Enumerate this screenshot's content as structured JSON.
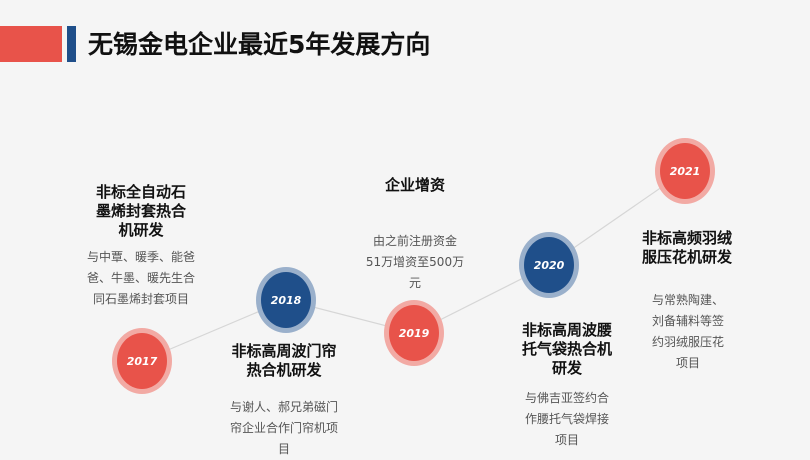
{
  "page": {
    "title": "无锡金电企业最近5年发展方向"
  },
  "colors": {
    "accent_red": "#e8534a",
    "accent_blue": "#1f4f8a",
    "node_red": "#e8534a",
    "node_red_ring": "#f2aaa4",
    "node_blue": "#1f4f8a",
    "node_blue_ring": "#9ab0cb"
  },
  "milestones": [
    {
      "year": "2017",
      "color": "red",
      "title_lines": [
        "非标全自动石",
        "墨烯封套热合",
        "机研发"
      ],
      "desc_lines": [
        "与中覃、暖季、能爸",
        "爸、牛墨、暖先生合",
        "同石墨烯封套项目"
      ]
    },
    {
      "year": "2018",
      "color": "blue",
      "title_lines": [
        "非标高周波门帘",
        "热合机研发"
      ],
      "desc_lines": [
        "与谢人、郝兄弟磁门",
        "帘企业合作门帘机项",
        "目"
      ]
    },
    {
      "year": "2019",
      "color": "red",
      "title_lines": [
        "企业增资"
      ],
      "desc_lines": [
        "由之前注册资金",
        "51万增资至500万",
        "元"
      ]
    },
    {
      "year": "2020",
      "color": "blue",
      "title_lines": [
        "非标高周波腰",
        "托气袋热合机",
        "研发"
      ],
      "desc_lines": [
        "与佛吉亚签约合",
        "作腰托气袋焊接",
        "项目"
      ]
    },
    {
      "year": "2021",
      "color": "red",
      "title_lines": [
        "非标高频羽绒",
        "服压花机研发"
      ],
      "desc_lines": [
        "与常熟陶建、",
        "刘备辅料等签",
        "约羽绒服压花",
        "项目"
      ]
    }
  ]
}
